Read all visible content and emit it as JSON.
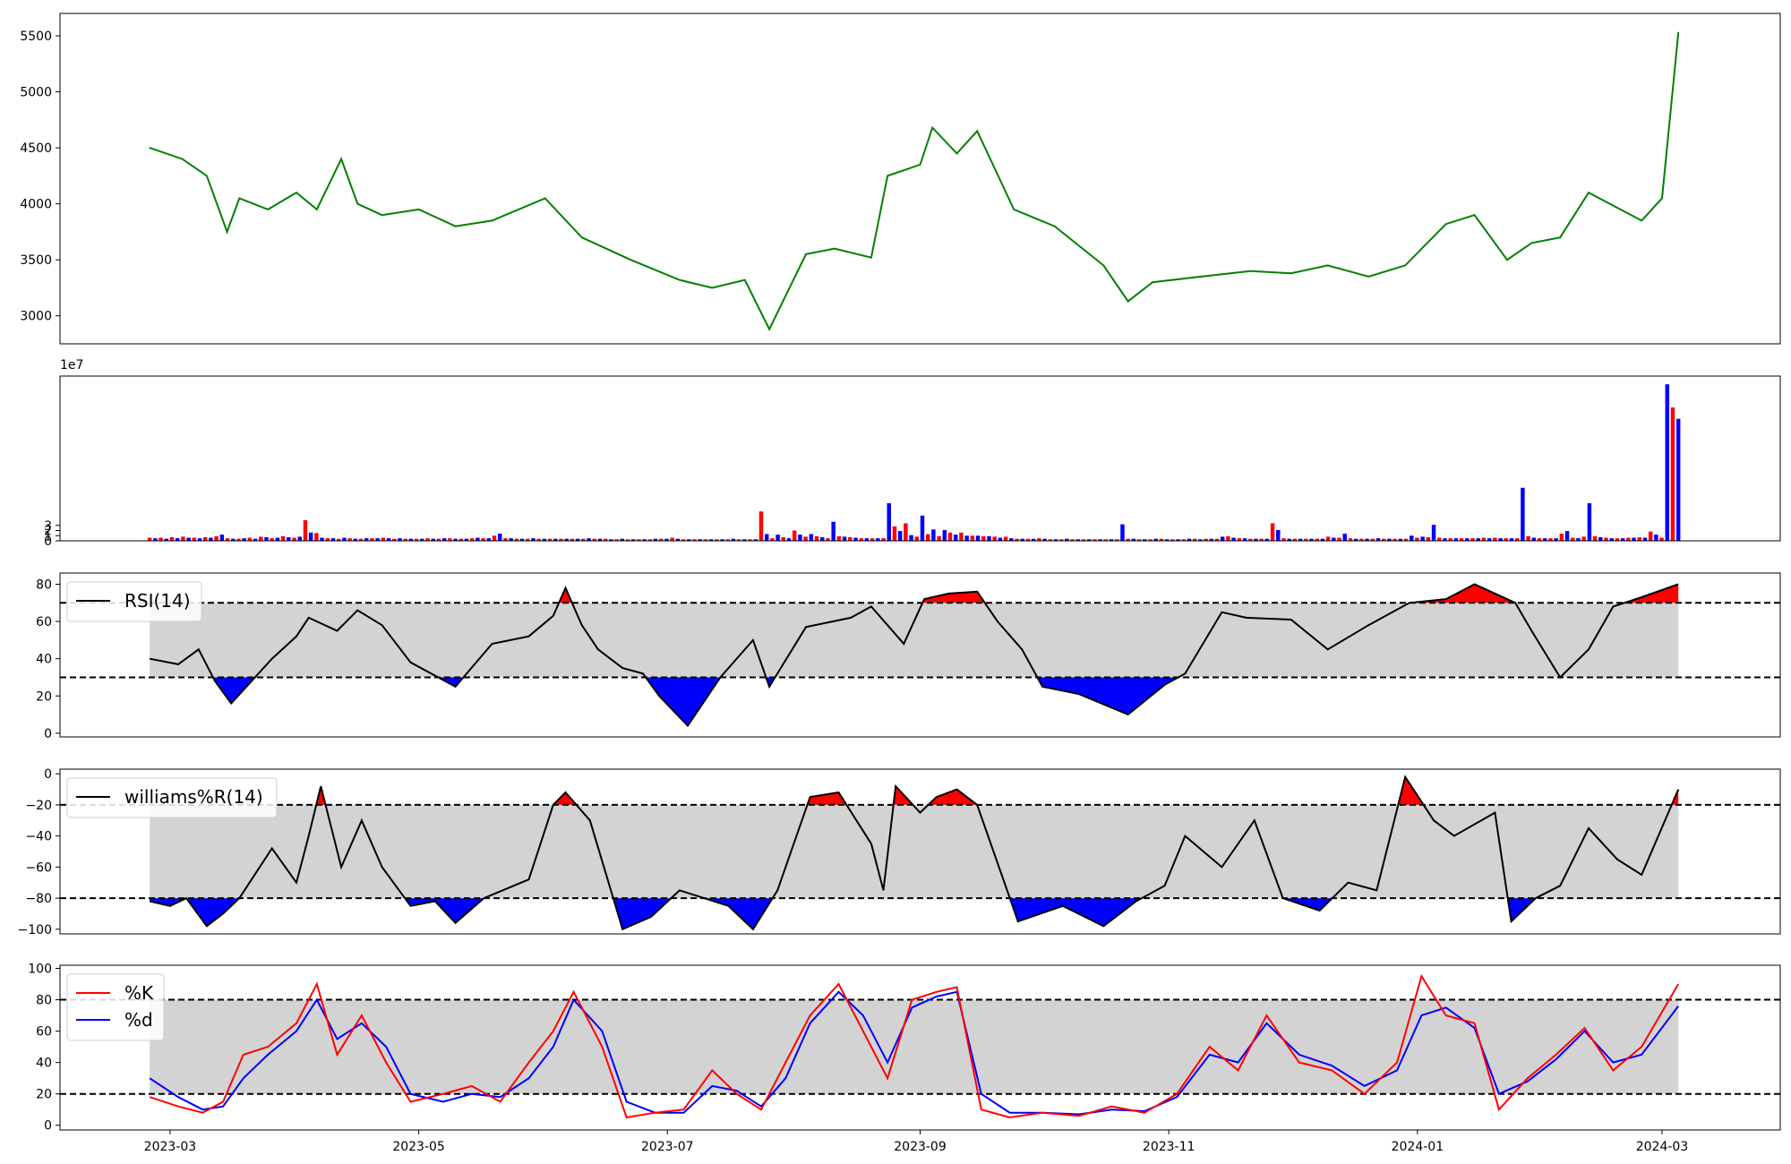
{
  "figure": {
    "background": "#ffffff"
  },
  "colors": {
    "price": "#008000",
    "up": "#ff0000",
    "down": "#0000ff",
    "band": "#d3d3d3",
    "indicator": "#000000",
    "k_line": "#ff0000",
    "d_line": "#0000ff"
  },
  "chart_data": [
    {
      "type": "line",
      "name": "price",
      "title": "",
      "xlabel": "",
      "ylabel": "",
      "ylim": [
        2750,
        5700
      ],
      "yticks": [
        "3000",
        "3500",
        "4000",
        "4500",
        "5000",
        "5500"
      ],
      "x": [
        "2023-02-24",
        "2023-03-04",
        "2023-03-10",
        "2023-03-15",
        "2023-03-18",
        "2023-03-25",
        "2023-04-01",
        "2023-04-06",
        "2023-04-12",
        "2023-04-16",
        "2023-04-22",
        "2023-05-01",
        "2023-05-10",
        "2023-05-19",
        "2023-06-01",
        "2023-06-10",
        "2023-06-22",
        "2023-07-04",
        "2023-07-12",
        "2023-07-20",
        "2023-07-26",
        "2023-08-04",
        "2023-08-11",
        "2023-08-20",
        "2023-08-24",
        "2023-09-01",
        "2023-09-04",
        "2023-09-10",
        "2023-09-15",
        "2023-09-24",
        "2023-10-04",
        "2023-10-16",
        "2023-10-22",
        "2023-10-28",
        "2023-11-09",
        "2023-11-21",
        "2023-12-01",
        "2023-12-10",
        "2023-12-20",
        "2023-12-29",
        "2024-01-08",
        "2024-01-15",
        "2024-01-23",
        "2024-01-29",
        "2024-02-05",
        "2024-02-12",
        "2024-02-25",
        "2024-03-01",
        "2024-03-05"
      ],
      "series": [
        {
          "values": [
            4500,
            4400,
            4250,
            3750,
            4050,
            3950,
            4100,
            3950,
            4400,
            4000,
            3900,
            3950,
            3800,
            3850,
            4050,
            3700,
            3500,
            3320,
            3250,
            3320,
            2880,
            3550,
            3600,
            3520,
            4250,
            4350,
            4680,
            4450,
            4650,
            3950,
            3800,
            3450,
            3130,
            3300,
            3350,
            3400,
            3380,
            3450,
            3350,
            3450,
            3820,
            3900,
            3500,
            3650,
            3700,
            4100,
            3850,
            4050,
            5530
          ]
        }
      ]
    },
    {
      "type": "bar",
      "name": "volume",
      "title": "",
      "ylim": [
        0,
        32
      ],
      "yticks": [
        "0",
        "1",
        "2",
        "3"
      ],
      "y_multiplier": "1e7",
      "x_range": [
        "2023-02-24",
        "2024-03-05"
      ],
      "series": [
        {
          "values": [
            0.6,
            0.5,
            0.6,
            0.4,
            0.7,
            0.5,
            0.8,
            0.6,
            0.6,
            0.5,
            0.7,
            0.6,
            0.9,
            1.2,
            0.5,
            0.4,
            0.4,
            0.5,
            0.6,
            0.4,
            0.8,
            0.7,
            0.5,
            0.6,
            0.9,
            0.7,
            0.6,
            0.8,
            4.0,
            1.6,
            1.5,
            0.6,
            0.5,
            0.5,
            0.4,
            0.6,
            0.5,
            0.4,
            0.4,
            0.5,
            0.5,
            0.5,
            0.6,
            0.5,
            0.4,
            0.5,
            0.4,
            0.4,
            0.4,
            0.4,
            0.5,
            0.4,
            0.4,
            0.5,
            0.5,
            0.4,
            0.4,
            0.4,
            0.5,
            0.6,
            0.5,
            0.5,
            1.0,
            1.4,
            0.5,
            0.5,
            0.4,
            0.4,
            0.4,
            0.5,
            0.4,
            0.4,
            0.4,
            0.4,
            0.4,
            0.4,
            0.4,
            0.4,
            0.4,
            0.5,
            0.4,
            0.4,
            0.4,
            0.3,
            0.3,
            0.4,
            0.3,
            0.3,
            0.3,
            0.3,
            0.3,
            0.4,
            0.4,
            0.4,
            0.6,
            0.4,
            0.3,
            0.3,
            0.3,
            0.3,
            0.3,
            0.3,
            0.3,
            0.3,
            0.3,
            0.4,
            0.3,
            0.3,
            0.3,
            0.3,
            5.7,
            1.3,
            0.5,
            1.2,
            0.7,
            0.5,
            2.0,
            1.2,
            0.8,
            1.3,
            0.9,
            0.7,
            0.5,
            3.7,
            0.9,
            0.8,
            0.7,
            0.6,
            0.5,
            0.5,
            0.5,
            0.5,
            0.5,
            7.3,
            2.8,
            1.9,
            3.4,
            1.1,
            0.8,
            4.9,
            1.3,
            2.2,
            0.9,
            2.1,
            1.6,
            1.2,
            1.6,
            1.0,
            1.0,
            1.0,
            0.9,
            0.9,
            0.8,
            0.6,
            0.8,
            0.5,
            0.4,
            0.4,
            0.4,
            0.4,
            0.5,
            0.4,
            0.3,
            0.3,
            0.3,
            0.4,
            0.3,
            0.3,
            0.3,
            0.3,
            0.3,
            0.3,
            0.3,
            0.3,
            0.3,
            3.2,
            0.4,
            0.4,
            0.3,
            0.3,
            0.3,
            0.4,
            0.4,
            0.3,
            0.3,
            0.3,
            0.3,
            0.4,
            0.4,
            0.3,
            0.4,
            0.4,
            0.4,
            0.8,
            0.9,
            0.6,
            0.5,
            0.5,
            0.4,
            0.4,
            0.4,
            0.4,
            3.4,
            2.1,
            0.5,
            0.4,
            0.4,
            0.4,
            0.4,
            0.4,
            0.4,
            0.4,
            0.8,
            0.6,
            0.6,
            1.4,
            0.5,
            0.4,
            0.4,
            0.4,
            0.4,
            0.5,
            0.4,
            0.4,
            0.4,
            0.4,
            0.4,
            1.0,
            0.6,
            0.8,
            0.7,
            3.1,
            0.6,
            0.5,
            0.5,
            0.5,
            0.5,
            0.5,
            0.5,
            0.5,
            0.6,
            0.5,
            0.6,
            0.5,
            0.5,
            0.5,
            0.5,
            10.3,
            0.9,
            0.6,
            0.5,
            0.5,
            0.5,
            0.5,
            1.4,
            1.9,
            0.6,
            0.5,
            0.8,
            7.3,
            0.9,
            0.7,
            0.6,
            0.5,
            0.5,
            0.5,
            0.6,
            0.6,
            0.7,
            0.6,
            1.8,
            1.2,
            0.6,
            30.4,
            25.9,
            23.7
          ]
        }
      ]
    },
    {
      "type": "area",
      "name": "rsi",
      "title": "",
      "ylim": [
        -2,
        86
      ],
      "yticks": [
        "0",
        "20",
        "40",
        "60",
        "80"
      ],
      "thresholds": [
        30,
        70
      ],
      "legend": [
        {
          "label": "RSI(14)",
          "color": "#000000"
        }
      ],
      "legend_position": "upper-left",
      "x": [
        "2023-02-24",
        "2023-03-03",
        "2023-03-08",
        "2023-03-12",
        "2023-03-16",
        "2023-03-26",
        "2023-04-01",
        "2023-04-04",
        "2023-04-11",
        "2023-04-16",
        "2023-04-22",
        "2023-04-29",
        "2023-05-10",
        "2023-05-19",
        "2023-05-28",
        "2023-06-03",
        "2023-06-06",
        "2023-06-10",
        "2023-06-14",
        "2023-06-20",
        "2023-06-25",
        "2023-06-29",
        "2023-07-06",
        "2023-07-14",
        "2023-07-22",
        "2023-07-26",
        "2023-08-04",
        "2023-08-15",
        "2023-08-20",
        "2023-08-28",
        "2023-09-02",
        "2023-09-08",
        "2023-09-15",
        "2023-09-20",
        "2023-09-26",
        "2023-10-01",
        "2023-10-10",
        "2023-10-22",
        "2023-10-31",
        "2023-11-05",
        "2023-11-14",
        "2023-11-20",
        "2023-12-01",
        "2023-12-10",
        "2023-12-20",
        "2023-12-30",
        "2024-01-08",
        "2024-01-15",
        "2024-01-25",
        "2024-01-29",
        "2024-02-05",
        "2024-02-12",
        "2024-02-18",
        "2024-02-25",
        "2024-03-05"
      ],
      "series": [
        {
          "values": [
            40,
            37,
            45,
            28,
            16,
            40,
            52,
            62,
            55,
            66,
            58,
            38,
            25,
            48,
            52,
            63,
            78,
            58,
            45,
            35,
            32,
            20,
            4,
            30,
            50,
            25,
            57,
            62,
            68,
            48,
            72,
            75,
            76,
            60,
            45,
            25,
            21,
            10,
            26,
            32,
            65,
            62,
            61,
            45,
            58,
            70,
            72,
            80,
            70,
            55,
            30,
            45,
            68,
            73,
            80
          ]
        }
      ]
    },
    {
      "type": "area",
      "name": "williams_r",
      "title": "",
      "ylim": [
        -103,
        3
      ],
      "yticks": [
        "0",
        "−20",
        "−40",
        "−60",
        "−80",
        "−100"
      ],
      "thresholds": [
        -20,
        -80
      ],
      "legend": [
        {
          "label": "williams%R(14)",
          "color": "#000000"
        }
      ],
      "legend_position": "upper-left",
      "x": [
        "2023-02-24",
        "2023-03-01",
        "2023-03-05",
        "2023-03-10",
        "2023-03-14",
        "2023-03-18",
        "2023-03-26",
        "2023-04-01",
        "2023-04-04",
        "2023-04-07",
        "2023-04-12",
        "2023-04-17",
        "2023-04-22",
        "2023-04-29",
        "2023-05-05",
        "2023-05-10",
        "2023-05-17",
        "2023-05-28",
        "2023-06-03",
        "2023-06-06",
        "2023-06-12",
        "2023-06-20",
        "2023-06-27",
        "2023-07-04",
        "2023-07-10",
        "2023-07-16",
        "2023-07-22",
        "2023-07-28",
        "2023-08-05",
        "2023-08-12",
        "2023-08-20",
        "2023-08-23",
        "2023-08-26",
        "2023-09-01",
        "2023-09-05",
        "2023-09-10",
        "2023-09-15",
        "2023-09-25",
        "2023-10-06",
        "2023-10-16",
        "2023-10-24",
        "2023-10-31",
        "2023-11-05",
        "2023-11-14",
        "2023-11-22",
        "2023-11-29",
        "2023-12-08",
        "2023-12-15",
        "2023-12-22",
        "2023-12-29",
        "2024-01-05",
        "2024-01-10",
        "2024-01-20",
        "2024-01-24",
        "2024-01-30",
        "2024-02-05",
        "2024-02-12",
        "2024-02-19",
        "2024-02-25",
        "2024-03-05"
      ],
      "series": [
        {
          "values": [
            -82,
            -85,
            -80,
            -98,
            -90,
            -80,
            -48,
            -70,
            -40,
            -8,
            -60,
            -30,
            -60,
            -85,
            -82,
            -96,
            -80,
            -68,
            -20,
            -12,
            -30,
            -100,
            -92,
            -75,
            -80,
            -85,
            -100,
            -75,
            -15,
            -12,
            -45,
            -75,
            -8,
            -25,
            -15,
            -10,
            -20,
            -95,
            -85,
            -98,
            -82,
            -72,
            -40,
            -60,
            -30,
            -80,
            -88,
            -70,
            -75,
            -2,
            -30,
            -40,
            -25,
            -95,
            -80,
            -72,
            -35,
            -55,
            -65,
            -10
          ]
        }
      ]
    },
    {
      "type": "line",
      "name": "stochastic",
      "title": "",
      "ylim": [
        -3,
        102
      ],
      "yticks": [
        "0",
        "20",
        "40",
        "60",
        "80",
        "100"
      ],
      "thresholds": [
        20,
        80
      ],
      "legend": [
        {
          "label": "%K",
          "color": "#ff0000"
        },
        {
          "label": "%d",
          "color": "#0000ff"
        }
      ],
      "legend_position": "upper-left",
      "x": [
        "2023-02-24",
        "2023-03-03",
        "2023-03-09",
        "2023-03-14",
        "2023-03-19",
        "2023-03-25",
        "2023-04-01",
        "2023-04-06",
        "2023-04-11",
        "2023-04-17",
        "2023-04-23",
        "2023-04-29",
        "2023-05-07",
        "2023-05-14",
        "2023-05-21",
        "2023-05-28",
        "2023-06-03",
        "2023-06-08",
        "2023-06-15",
        "2023-06-21",
        "2023-06-28",
        "2023-07-05",
        "2023-07-12",
        "2023-07-18",
        "2023-07-24",
        "2023-07-30",
        "2023-08-05",
        "2023-08-12",
        "2023-08-18",
        "2023-08-24",
        "2023-08-30",
        "2023-09-05",
        "2023-09-10",
        "2023-09-16",
        "2023-09-23",
        "2023-10-01",
        "2023-10-10",
        "2023-10-18",
        "2023-10-26",
        "2023-11-03",
        "2023-11-11",
        "2023-11-18",
        "2023-11-25",
        "2023-12-03",
        "2023-12-11",
        "2023-12-19",
        "2023-12-27",
        "2024-01-02",
        "2024-01-08",
        "2024-01-15",
        "2024-01-21",
        "2024-01-28",
        "2024-02-04",
        "2024-02-11",
        "2024-02-18",
        "2024-02-25",
        "2024-03-05"
      ],
      "series": [
        {
          "name": "%K",
          "values": [
            18,
            12,
            8,
            15,
            45,
            50,
            65,
            90,
            45,
            70,
            40,
            15,
            20,
            25,
            15,
            40,
            60,
            85,
            50,
            5,
            8,
            10,
            35,
            20,
            10,
            40,
            70,
            90,
            60,
            30,
            80,
            85,
            88,
            10,
            5,
            8,
            6,
            12,
            8,
            20,
            50,
            35,
            70,
            40,
            35,
            20,
            40,
            95,
            70,
            65,
            10,
            30,
            45,
            62,
            35,
            50,
            90
          ]
        },
        {
          "name": "%d",
          "values": [
            30,
            18,
            10,
            12,
            30,
            45,
            60,
            80,
            55,
            65,
            50,
            20,
            15,
            20,
            18,
            30,
            50,
            80,
            60,
            15,
            8,
            8,
            25,
            22,
            12,
            30,
            65,
            85,
            70,
            40,
            75,
            82,
            85,
            20,
            8,
            8,
            7,
            10,
            9,
            18,
            45,
            40,
            65,
            45,
            38,
            25,
            35,
            70,
            75,
            62,
            20,
            28,
            42,
            60,
            40,
            45,
            76
          ]
        }
      ]
    }
  ],
  "x_axis": {
    "ticks": [
      "2023-03",
      "2023-05",
      "2023-07",
      "2023-09",
      "2023-11",
      "2024-01",
      "2024-03"
    ]
  }
}
